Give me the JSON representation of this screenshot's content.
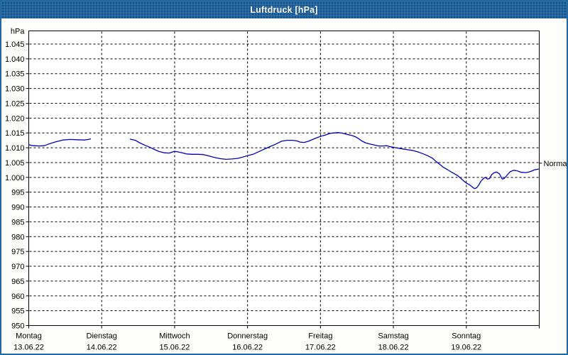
{
  "window": {
    "title": "Luftdruck [hPa]"
  },
  "colors": {
    "titlebar_bg": "#2166a0",
    "window_border": "#2268a2",
    "plot_border": "#000000",
    "grid": "#000000",
    "text": "#000000",
    "line": "#0000bb",
    "background": "#fdfdfc"
  },
  "chart_data": {
    "type": "line",
    "title": "Luftdruck [hPa]",
    "ylabel": "hPa",
    "ylim": [
      950,
      1045
    ],
    "ytick_step": 5,
    "ytick_labels": [
      "1.045",
      "1.040",
      "1.035",
      "1.030",
      "1.025",
      "1.020",
      "1.015",
      "1.010",
      "1.005",
      "1.000",
      "995",
      "990",
      "985",
      "980",
      "975",
      "970",
      "965",
      "960",
      "955",
      "950"
    ],
    "grid": "dashed",
    "x_days": [
      {
        "name": "Montag",
        "date": "13.06.22"
      },
      {
        "name": "Dienstag",
        "date": "14.06.22"
      },
      {
        "name": "Mittwoch",
        "date": "15.06.22"
      },
      {
        "name": "Donnerstag",
        "date": "16.06.22"
      },
      {
        "name": "Freitag",
        "date": "17.06.22"
      },
      {
        "name": "Samstag",
        "date": "18.06.22"
      },
      {
        "name": "Sonntag",
        "date": "19.06.22"
      }
    ],
    "x_range_days": [
      0,
      7
    ],
    "normal_marker": {
      "label": "Normal",
      "value": 1004.8
    },
    "series": [
      {
        "name": "Luftdruck",
        "color": "#0000bb",
        "segments": [
          [
            [
              0,
              1011.0
            ],
            [
              0.058,
              1010.7
            ],
            [
              0.146,
              1010.6
            ],
            [
              0.214,
              1010.7
            ],
            [
              0.292,
              1011.4
            ],
            [
              0.37,
              1012.0
            ],
            [
              0.467,
              1012.6
            ],
            [
              0.565,
              1012.8
            ],
            [
              0.662,
              1012.7
            ],
            [
              0.759,
              1012.6
            ],
            [
              0.818,
              1012.8
            ],
            [
              0.847,
              1013.0
            ]
          ],
          [
            [
              1.392,
              1012.9
            ],
            [
              1.46,
              1012.5
            ],
            [
              1.519,
              1011.7
            ],
            [
              1.587,
              1010.9
            ],
            [
              1.655,
              1010.2
            ],
            [
              1.723,
              1009.4
            ],
            [
              1.791,
              1008.7
            ],
            [
              1.859,
              1008.3
            ],
            [
              1.928,
              1008.2
            ],
            [
              1.996,
              1008.8
            ],
            [
              2.044,
              1008.6
            ],
            [
              2.103,
              1008.3
            ],
            [
              2.161,
              1007.9
            ],
            [
              2.239,
              1007.8
            ],
            [
              2.317,
              1007.8
            ],
            [
              2.395,
              1007.7
            ],
            [
              2.473,
              1007.2
            ],
            [
              2.551,
              1006.7
            ],
            [
              2.629,
              1006.3
            ],
            [
              2.707,
              1006.1
            ],
            [
              2.784,
              1006.2
            ],
            [
              2.862,
              1006.4
            ],
            [
              2.93,
              1006.8
            ],
            [
              2.999,
              1007.3
            ],
            [
              3.076,
              1007.8
            ],
            [
              3.174,
              1008.9
            ],
            [
              3.271,
              1010.0
            ],
            [
              3.368,
              1011.0
            ],
            [
              3.466,
              1012.2
            ],
            [
              3.544,
              1012.5
            ],
            [
              3.621,
              1012.5
            ],
            [
              3.68,
              1012.3
            ],
            [
              3.719,
              1011.9
            ],
            [
              3.777,
              1011.8
            ],
            [
              3.836,
              1012.2
            ],
            [
              3.894,
              1012.8
            ],
            [
              3.952,
              1013.4
            ],
            [
              4.011,
              1013.9
            ],
            [
              4.069,
              1014.3
            ],
            [
              4.128,
              1014.8
            ],
            [
              4.186,
              1015.0
            ],
            [
              4.244,
              1015.1
            ],
            [
              4.303,
              1014.9
            ],
            [
              4.361,
              1014.5
            ],
            [
              4.42,
              1014.2
            ],
            [
              4.478,
              1013.7
            ],
            [
              4.527,
              1013.0
            ],
            [
              4.566,
              1012.3
            ],
            [
              4.614,
              1011.7
            ],
            [
              4.673,
              1011.3
            ],
            [
              4.741,
              1010.9
            ],
            [
              4.799,
              1010.6
            ],
            [
              4.858,
              1010.6
            ],
            [
              4.906,
              1010.7
            ],
            [
              4.965,
              1010.3
            ],
            [
              5.033,
              1010.0
            ],
            [
              5.101,
              1009.7
            ],
            [
              5.179,
              1009.4
            ],
            [
              5.257,
              1009.1
            ],
            [
              5.335,
              1008.6
            ],
            [
              5.412,
              1007.9
            ],
            [
              5.481,
              1007.2
            ],
            [
              5.539,
              1006.4
            ],
            [
              5.588,
              1005.3
            ],
            [
              5.636,
              1004.4
            ],
            [
              5.685,
              1003.4
            ],
            [
              5.734,
              1002.7
            ],
            [
              5.782,
              1002.0
            ],
            [
              5.831,
              1001.3
            ],
            [
              5.88,
              1000.6
            ],
            [
              5.928,
              999.6
            ],
            [
              5.967,
              998.7
            ],
            [
              6.006,
              998.0
            ],
            [
              6.045,
              997.5
            ],
            [
              6.084,
              996.7
            ],
            [
              6.113,
              996.2
            ],
            [
              6.143,
              996.5
            ],
            [
              6.172,
              997.5
            ],
            [
              6.201,
              998.7
            ],
            [
              6.23,
              999.5
            ],
            [
              6.259,
              1000.0
            ],
            [
              6.289,
              999.4
            ],
            [
              6.318,
              999.6
            ],
            [
              6.347,
              1000.9
            ],
            [
              6.376,
              1001.5
            ],
            [
              6.415,
              1001.8
            ],
            [
              6.454,
              1001.2
            ],
            [
              6.493,
              999.4
            ],
            [
              6.522,
              999.7
            ],
            [
              6.561,
              1000.8
            ],
            [
              6.6,
              1001.9
            ],
            [
              6.649,
              1002.4
            ],
            [
              6.697,
              1002.2
            ],
            [
              6.756,
              1001.7
            ],
            [
              6.814,
              1001.6
            ],
            [
              6.872,
              1001.9
            ],
            [
              6.931,
              1002.5
            ],
            [
              6.989,
              1002.8
            ]
          ]
        ]
      }
    ]
  }
}
